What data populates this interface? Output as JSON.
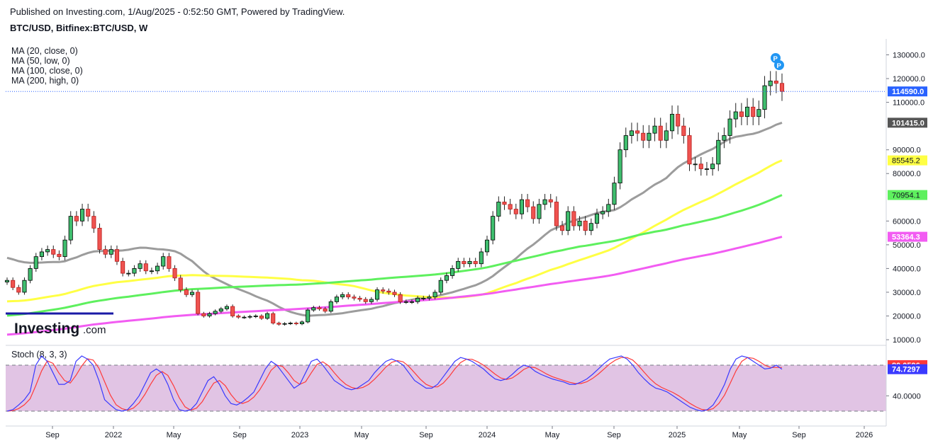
{
  "header": {
    "published": "Published on Investing.com, 1/Aug/2025 - 0:52:50 GMT, Powered by TradingView.",
    "symbol": "BTC/USD, Bitfinex:BTC/USD, W"
  },
  "indicators": [
    {
      "label": "MA (20, close, 0)",
      "color": "#9c9c9c"
    },
    {
      "label": "MA (50, low, 0)",
      "color": "#ffff44"
    },
    {
      "label": "MA (100, close, 0)",
      "color": "#5ef05e"
    },
    {
      "label": "MA (200, high, 0)",
      "color": "#f25cf2"
    }
  ],
  "brand": {
    "name_bold": "Investing",
    "name_suffix": ".com"
  },
  "stoch": {
    "title": "Stoch (8, 3, 3)",
    "k_value": "74.7297",
    "d_value": "80.0596",
    "k_color": "#3a3aff",
    "d_color": "#ff3a3a",
    "upper_band": 80,
    "lower_band": 20,
    "axis_ticks": [
      "40.0000"
    ]
  },
  "chart_data": {
    "type": "candlestick",
    "title": "BTC/USD, Bitfinex:BTC/USD, W",
    "price_axis_ticks": [
      "130000.0",
      "120000.0",
      "110000.0",
      "90000.0",
      "80000.0",
      "60000.0",
      "50000.0",
      "40000.0",
      "30000.0",
      "20000.0",
      "10000.0"
    ],
    "time_axis_ticks": [
      "Sep",
      "2022",
      "May",
      "Sep",
      "2023",
      "May",
      "Sep",
      "2024",
      "May",
      "Sep",
      "2025",
      "May",
      "Sep",
      "2026"
    ],
    "price_labels": [
      {
        "text": "114590.0",
        "color": "#2962ff",
        "series": "last price"
      },
      {
        "text": "101415.0",
        "color": "#555555",
        "series": "MA (20, close, 0)"
      },
      {
        "text": "85545.2",
        "color": "#ffff44",
        "series": "MA (50, low, 0)"
      },
      {
        "text": "70954.1",
        "color": "#5ef05e",
        "series": "MA (100, close, 0)"
      },
      {
        "text": "53364.3",
        "color": "#f25cf2",
        "series": "MA (200, high, 0)"
      }
    ],
    "last_price": 114590,
    "ma_values": {
      "ma20": 101415,
      "ma50": 85545.2,
      "ma100": 70954.1,
      "ma200": 53364.3
    },
    "close_series": [
      35000,
      32000,
      30000,
      35000,
      40000,
      45000,
      47000,
      48000,
      46000,
      45000,
      52000,
      62000,
      60000,
      65000,
      62000,
      57000,
      48000,
      46000,
      48000,
      43000,
      38000,
      38000,
      40000,
      42000,
      39000,
      39000,
      41000,
      45000,
      40000,
      36000,
      31000,
      29000,
      30000,
      21000,
      20000,
      21000,
      22000,
      23000,
      24000,
      20000,
      19500,
      19500,
      19800,
      20000,
      19000,
      21000,
      17000,
      16500,
      16800,
      17000,
      16700,
      17500,
      22500,
      23500,
      23000,
      22000,
      26000,
      28000,
      29000,
      28000,
      27500,
      27000,
      26000,
      27000,
      31000,
      30500,
      30000,
      29000,
      26000,
      26000,
      26000,
      27500,
      27500,
      28000,
      30000,
      35000,
      37000,
      40000,
      43000,
      42000,
      43000,
      42000,
      47000,
      52000,
      62000,
      68000,
      67000,
      65000,
      63000,
      69000,
      66000,
      61000,
      67000,
      69000,
      68000,
      58000,
      56000,
      64000,
      58000,
      60000,
      56000,
      59000,
      63000,
      64000,
      67000,
      76000,
      90000,
      96000,
      98000,
      97000,
      94000,
      97000,
      100000,
      94000,
      98000,
      105000,
      100000,
      96000,
      84000,
      84000,
      82000,
      82000,
      84000,
      94000,
      96000,
      103000,
      106000,
      104000,
      108000,
      104000,
      107000,
      117000,
      119000,
      118000,
      114590
    ],
    "stoch_k_series": [
      20,
      22,
      28,
      35,
      45,
      80,
      92,
      85,
      70,
      55,
      55,
      60,
      85,
      92,
      88,
      80,
      60,
      35,
      28,
      22,
      20,
      22,
      30,
      40,
      55,
      70,
      75,
      70,
      55,
      35,
      22,
      20,
      22,
      30,
      45,
      60,
      65,
      55,
      40,
      30,
      28,
      32,
      38,
      45,
      60,
      75,
      85,
      80,
      70,
      60,
      50,
      55,
      70,
      85,
      88,
      80,
      70,
      60,
      55,
      50,
      48,
      50,
      55,
      60,
      70,
      78,
      85,
      88,
      85,
      80,
      70,
      60,
      55,
      50,
      50,
      55,
      65,
      75,
      85,
      90,
      88,
      85,
      80,
      75,
      68,
      62,
      60,
      62,
      68,
      75,
      80,
      78,
      72,
      68,
      65,
      62,
      60,
      58,
      55,
      55,
      58,
      62,
      68,
      75,
      82,
      88,
      90,
      92,
      88,
      80,
      70,
      62,
      55,
      50,
      48,
      45,
      40,
      35,
      30,
      25,
      22,
      20,
      22,
      28,
      40,
      55,
      75,
      88,
      92,
      90,
      85,
      80,
      75,
      76,
      80,
      74.73
    ]
  }
}
